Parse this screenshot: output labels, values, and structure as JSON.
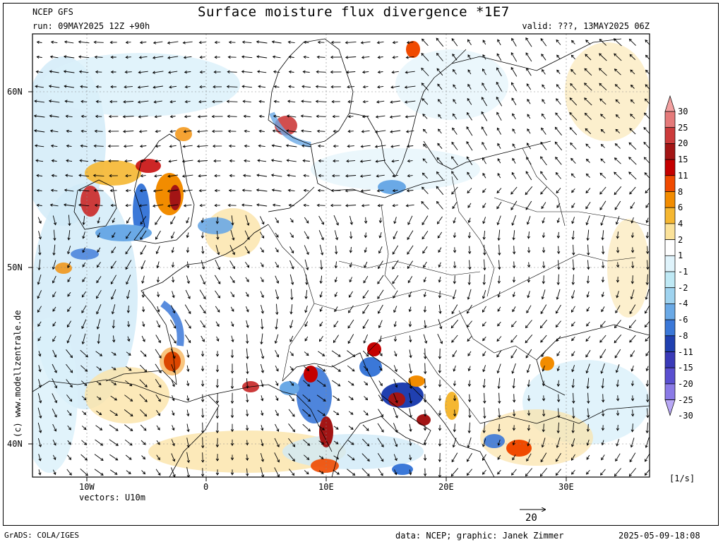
{
  "header": {
    "model": "NCEP GFS",
    "run": "run: 09MAY2025 12Z +90h",
    "title": "Surface moisture flux divergence *1E7",
    "valid": "valid: ???, 13MAY2025 06Z"
  },
  "map": {
    "lat_labels": [
      "60N",
      "50N",
      "40N"
    ],
    "lon_labels": [
      "10W",
      "0",
      "10E",
      "20E",
      "30E"
    ],
    "vectors_label": "vectors: U10m",
    "reference_vector_value": "20",
    "watermark": "(c) www.modellzentrale.de"
  },
  "colorbar": {
    "unit": "[1/s]",
    "levels": [
      "30",
      "25",
      "20",
      "15",
      "11",
      "8",
      "6",
      "4",
      "2",
      "1",
      "-1",
      "-2",
      "-4",
      "-6",
      "-8",
      "-11",
      "-15",
      "-20",
      "-25",
      "-30"
    ],
    "colors": [
      "#f2a0a0",
      "#e57a7a",
      "#cc3b3b",
      "#a31515",
      "#c40000",
      "#f04a00",
      "#f28c00",
      "#f5b731",
      "#fbe29a",
      "#ffffff",
      "#dff3fb",
      "#bfe9f5",
      "#9fd3ef",
      "#6aa9e6",
      "#3b78d8",
      "#2040b0",
      "#3a3ab8",
      "#5a4fd0",
      "#8a7ae6",
      "#b8a8f5"
    ]
  },
  "footer": {
    "left": "GrADS: COLA/IGES",
    "center": "data: NCEP; graphic: Janek Zimmer",
    "right": "2025-05-09-18:08"
  }
}
